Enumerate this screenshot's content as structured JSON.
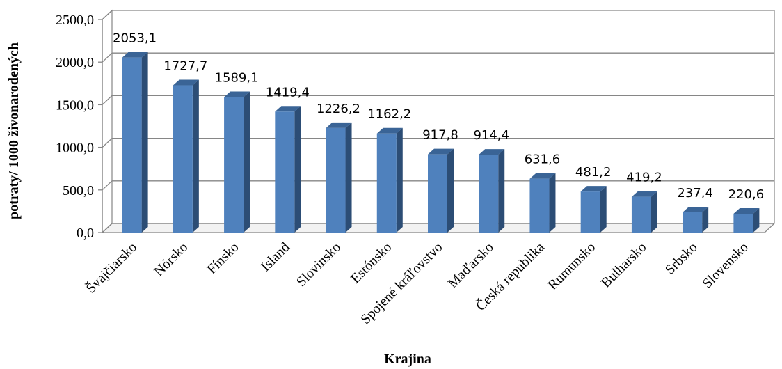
{
  "chart_data": {
    "type": "bar",
    "title": "",
    "xlabel": "Krajina",
    "ylabel": "potraty/ 1000 živonarodených",
    "categories": [
      "Švajčiarsko",
      "Nórsko",
      "Fínsko",
      "Island",
      "Slovinsko",
      "Estónsko",
      "Spojené kráľovstvo",
      "Maďarsko",
      "Česká republika",
      "Rumunsko",
      "Bulharsko",
      "Srbsko",
      "Slovensko"
    ],
    "values": [
      2053.1,
      1727.7,
      1589.1,
      1419.4,
      1226.2,
      1162.2,
      917.8,
      914.4,
      631.6,
      481.2,
      419.2,
      237.4,
      220.6
    ],
    "value_labels": [
      "2053,1",
      "1727,7",
      "1589,1",
      "1419,4",
      "1226,2",
      "1162,2",
      "917,8",
      "914,4",
      "631,6",
      "481,2",
      "419,2",
      "237,4",
      "220,6"
    ],
    "ylim": [
      0,
      2500
    ],
    "yticks": [
      0,
      500,
      1000,
      1500,
      2000,
      2500
    ],
    "ytick_labels": [
      "0,0",
      "500,0",
      "1000,0",
      "1500,0",
      "2000,0",
      "2500,0"
    ],
    "grid": true,
    "style": "3d-column",
    "colors": {
      "bar_front": "#4F81BD",
      "bar_side": "#2C4D75",
      "bar_top": "#3A6496",
      "grid": "#868686",
      "floor": "#868686"
    }
  }
}
